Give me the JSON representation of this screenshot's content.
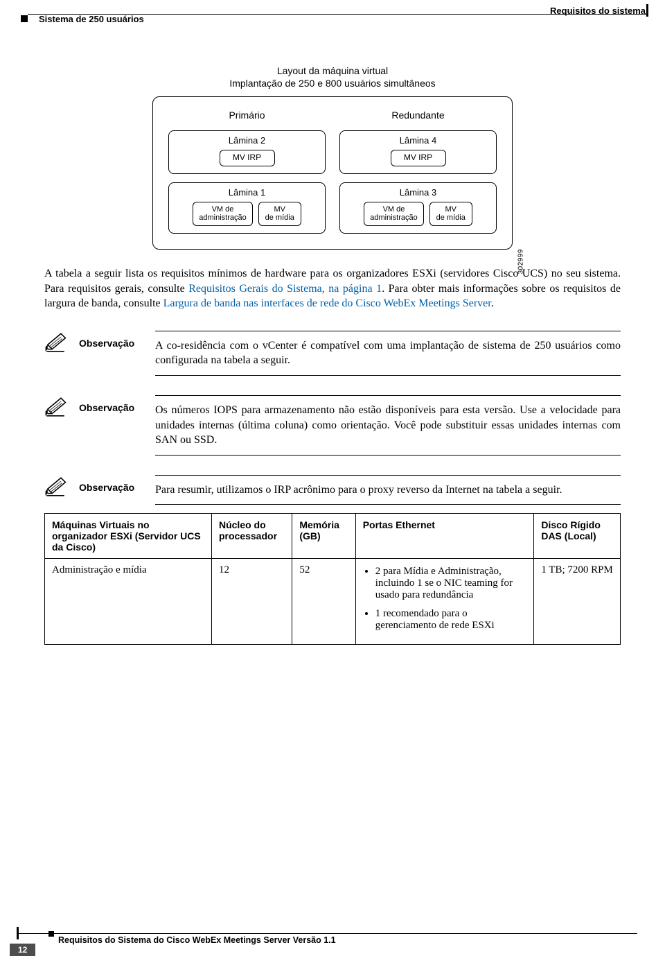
{
  "header": {
    "left": "Sistema de 250 usuários",
    "right": "Requisitos do sistema"
  },
  "diagram": {
    "title_line1": "Layout da máquina virtual",
    "title_line2": "Implantação de 250 e 800 usuários simultâneos",
    "code": "302999",
    "cols": [
      {
        "label": "Primário",
        "blades": [
          {
            "label": "Lâmina 2",
            "vms": [
              {
                "text": "MV IRP",
                "cls": ""
              }
            ]
          },
          {
            "label": "Lâmina 1",
            "vms": [
              {
                "text": "VM de\nadministração",
                "cls": "small"
              },
              {
                "text": "MV\nde mídia",
                "cls": "small"
              }
            ]
          }
        ]
      },
      {
        "label": "Redundante",
        "blades": [
          {
            "label": "Lâmina 4",
            "vms": [
              {
                "text": "MV IRP",
                "cls": ""
              }
            ]
          },
          {
            "label": "Lâmina 3",
            "vms": [
              {
                "text": "VM de\nadministração",
                "cls": "small"
              },
              {
                "text": "MV\nde mídia",
                "cls": "small"
              }
            ]
          }
        ]
      }
    ]
  },
  "para": {
    "p1a": "A tabela a seguir lista os requisitos mínimos de hardware para os organizadores ESXi (servidores Cisco UCS) no seu sistema. Para requisitos gerais, consulte ",
    "p1link1": "Requisitos Gerais do Sistema, na página 1",
    "p1b": ". Para obter mais informações sobre os requisitos de largura de banda, consulte ",
    "p1link2": "Largura de banda nas interfaces de rede do Cisco WebEx Meetings Server",
    "p1c": "."
  },
  "notes": [
    {
      "label": "Observação",
      "text": "A co-residência com o vCenter é compatível com uma implantação de sistema de 250 usuários como configurada na tabela a seguir."
    },
    {
      "label": "Observação",
      "text": "Os números IOPS para armazenamento não estão disponíveis para esta versão. Use a velocidade para unidades internas (última coluna) como orientação. Você pode substituir essas unidades internas com SAN ou SSD."
    },
    {
      "label": "Observação",
      "text": "Para resumir, utilizamos o IRP acrônimo para o proxy reverso da Internet na tabela a seguir."
    }
  ],
  "table": {
    "headers": [
      "Máquinas Virtuais no organizador ESXi (Servidor UCS da Cisco)",
      "Núcleo do processador",
      "Memória (GB)",
      "Portas Ethernet",
      "Disco Rígido DAS (Local)"
    ],
    "row1": {
      "c1": "Administração e mídia",
      "c2": "12",
      "c3": "52",
      "c4_items": [
        "2 para Mídia e Administração, incluindo 1 se o NIC teaming for usado para redundância",
        "1 recomendado para o gerenciamento de rede ESXi"
      ],
      "c5": "1 TB; 7200 RPM"
    }
  },
  "footer": {
    "title": "Requisitos do Sistema do Cisco WebEx Meetings Server Versão 1.1",
    "page": "12"
  }
}
